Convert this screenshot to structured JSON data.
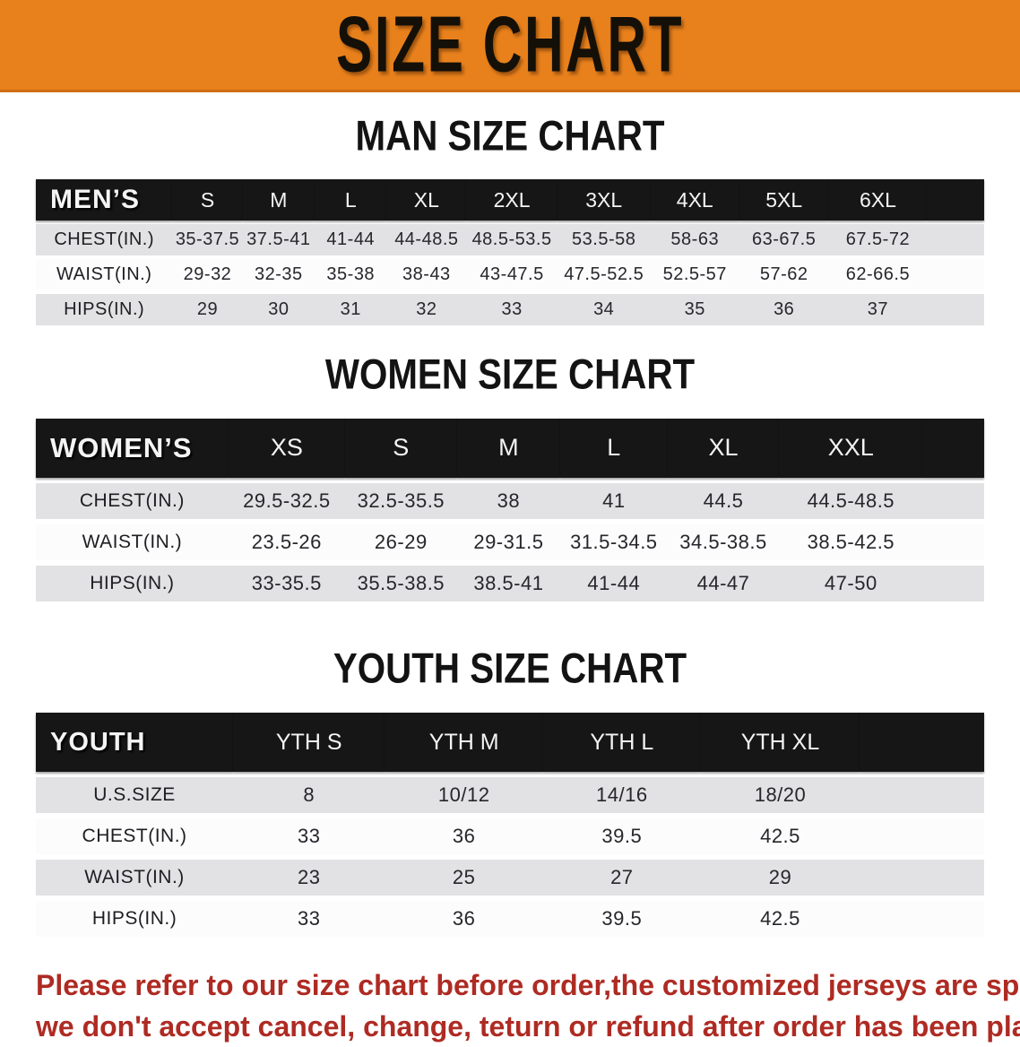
{
  "banner": {
    "title": "SIZE CHART",
    "bg_color": "#E8811C",
    "text_color": "#141008"
  },
  "sections": {
    "men": {
      "heading": "MAN SIZE CHART"
    },
    "women": {
      "heading": "WOMEN SIZE CHART"
    },
    "youth": {
      "heading": "YOUTH SIZE CHART"
    }
  },
  "tables": [
    {
      "corner": "MEN’S",
      "columns": [
        "S",
        "M",
        "L",
        "XL",
        "2XL",
        "3XL",
        "4XL",
        "5XL",
        "6XL"
      ],
      "rows": [
        {
          "label": "CHEST(IN.)",
          "values": [
            "35-37.5",
            "37.5-41",
            "41-44",
            "44-48.5",
            "48.5-53.5",
            "53.5-58",
            "58-63",
            "63-67.5",
            "67.5-72"
          ]
        },
        {
          "label": "WAIST(IN.)",
          "values": [
            "29-32",
            "32-35",
            "35-38",
            "38-43",
            "43-47.5",
            "47.5-52.5",
            "52.5-57",
            "57-62",
            "62-66.5"
          ]
        },
        {
          "label": "HIPS(IN.)",
          "values": [
            "29",
            "30",
            "31",
            "32",
            "33",
            "34",
            "35",
            "36",
            "37"
          ]
        }
      ]
    },
    {
      "corner": "WOMEN’S",
      "columns": [
        "XS",
        "S",
        "M",
        "L",
        "XL",
        "XXL"
      ],
      "rows": [
        {
          "label": "CHEST(IN.)",
          "values": [
            "29.5-32.5",
            "32.5-35.5",
            "38",
            "41",
            "44.5",
            "44.5-48.5"
          ]
        },
        {
          "label": "WAIST(IN.)",
          "values": [
            "23.5-26",
            "26-29",
            "29-31.5",
            "31.5-34.5",
            "34.5-38.5",
            "38.5-42.5"
          ]
        },
        {
          "label": "HIPS(IN.)",
          "values": [
            "33-35.5",
            "35.5-38.5",
            "38.5-41",
            "41-44",
            "44-47",
            "47-50"
          ]
        }
      ]
    },
    {
      "corner": "YOUTH",
      "columns": [
        "YTH S",
        "YTH M",
        "YTH L",
        "YTH XL"
      ],
      "rows": [
        {
          "label": "U.S.SIZE",
          "values": [
            "8",
            "10/12",
            "14/16",
            "18/20"
          ]
        },
        {
          "label": "CHEST(IN.)",
          "values": [
            "33",
            "36",
            "39.5",
            "42.5"
          ]
        },
        {
          "label": "WAIST(IN.)",
          "values": [
            "23",
            "25",
            "27",
            "29"
          ]
        },
        {
          "label": "HIPS(IN.)",
          "values": [
            "33",
            "36",
            "39.5",
            "42.5"
          ]
        }
      ]
    }
  ],
  "disclaimer": {
    "line1": "Please refer to our size chart before order,the customized jerseys are special products,",
    "line2": "we don't accept cancel, change, teturn or refund after order has been placed!",
    "color": "#AE2B23"
  }
}
